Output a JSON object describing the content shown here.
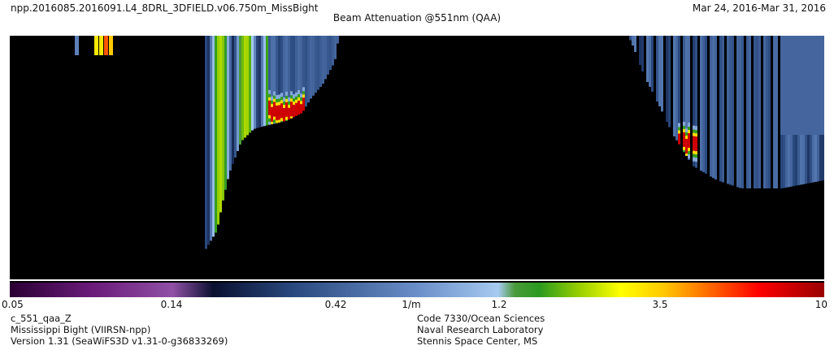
{
  "header": {
    "file_title": "npp.2016085.2016091.L4_8DRL_3DFIELD.v06.750m_MissBight",
    "date_range": "Mar 24, 2016-Mar 31, 2016",
    "chart_title": "Beam Attenuation @551nm (QAA)"
  },
  "footer_left": {
    "line1": "c_551_qaa_Z",
    "line2": "Mississippi Bight (VIIRSN-npp)",
    "line3": "Version 1.31 (SeaWiFS3D v1.31-0-g36833269)"
  },
  "footer_right": {
    "line1": "Code 7330/Ocean Sciences",
    "line2": "Naval Research Laboratory",
    "line3": "Stennis Space Center, MS"
  },
  "colors": {
    "no_data": "#000000",
    "background": "#ffffff"
  },
  "chart_data": {
    "type": "heatmap",
    "title": "Beam Attenuation @551nm (QAA)",
    "colorbar": {
      "scale": "log",
      "range": [
        0.05,
        10
      ],
      "unit": "1/m",
      "ticks": [
        "0.05",
        "0.14",
        "0.42",
        "1.2",
        "3.5",
        "10"
      ],
      "colormap": [
        [
          0.0,
          "#2a0033"
        ],
        [
          0.1,
          "#6a1a7a"
        ],
        [
          0.2,
          "#9050a6"
        ],
        [
          0.25,
          "#0a1030"
        ],
        [
          0.35,
          "#2a4a80"
        ],
        [
          0.5,
          "#6a8ec8"
        ],
        [
          0.6,
          "#a6caf0"
        ],
        [
          0.62,
          "#4a9a3a"
        ],
        [
          0.65,
          "#2a9a20"
        ],
        [
          0.7,
          "#9ad000"
        ],
        [
          0.75,
          "#ffff00"
        ],
        [
          0.8,
          "#ffcc00"
        ],
        [
          0.85,
          "#ff7700"
        ],
        [
          0.92,
          "#ff0000"
        ],
        [
          1.0,
          "#990000"
        ]
      ]
    },
    "layers": {
      "background_value": 0.4,
      "max_layer_value": 8.0,
      "nearshore_value": 1.2
    }
  }
}
